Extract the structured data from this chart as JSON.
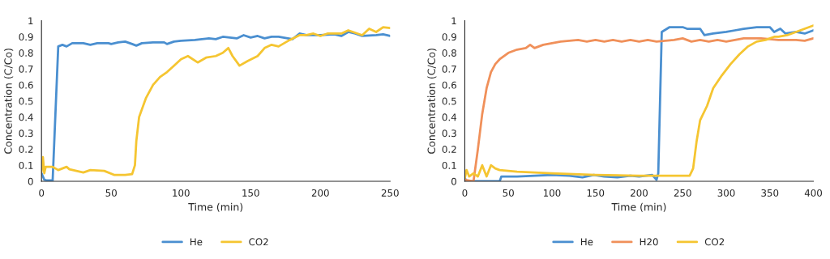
{
  "chart_data": [
    {
      "type": "line",
      "xlabel": "Time (min)",
      "ylabel": "Concentration (C/Co)",
      "xlim": [
        0,
        250
      ],
      "xticks": [
        0,
        50,
        100,
        150,
        200,
        250
      ],
      "ylim": [
        0,
        1
      ],
      "yticks": [
        0,
        0.1,
        0.2,
        0.3,
        0.4,
        0.5,
        0.6,
        0.7,
        0.8,
        0.9,
        1
      ],
      "grid": false,
      "legend": "bottom",
      "line_style": "solid",
      "marker": "none",
      "series": [
        {
          "name": "He",
          "color": "#4a8fd0",
          "x": [
            0,
            2,
            4,
            8,
            12,
            15,
            18,
            22,
            30,
            35,
            40,
            48,
            50,
            55,
            60,
            65,
            68,
            72,
            80,
            88,
            90,
            95,
            100,
            110,
            115,
            120,
            125,
            130,
            140,
            145,
            150,
            155,
            160,
            165,
            170,
            180,
            185,
            190,
            200,
            210,
            215,
            220,
            225,
            230,
            240,
            245,
            250
          ],
          "values": [
            0.05,
            0.01,
            0.005,
            0.005,
            0.84,
            0.85,
            0.84,
            0.86,
            0.86,
            0.85,
            0.86,
            0.86,
            0.855,
            0.865,
            0.87,
            0.855,
            0.845,
            0.86,
            0.865,
            0.865,
            0.855,
            0.87,
            0.875,
            0.88,
            0.885,
            0.89,
            0.885,
            0.9,
            0.89,
            0.91,
            0.895,
            0.905,
            0.89,
            0.9,
            0.9,
            0.885,
            0.92,
            0.91,
            0.91,
            0.915,
            0.905,
            0.93,
            0.92,
            0.905,
            0.91,
            0.915,
            0.905
          ]
        },
        {
          "name": "CO2",
          "color": "#f5c531",
          "x": [
            0,
            1,
            2,
            3,
            8,
            12,
            18,
            20,
            30,
            35,
            45,
            52,
            60,
            65,
            67,
            68,
            70,
            75,
            80,
            85,
            90,
            95,
            100,
            105,
            112,
            118,
            125,
            130,
            134,
            137,
            142,
            148,
            155,
            160,
            165,
            170,
            178,
            185,
            190,
            195,
            200,
            205,
            215,
            220,
            230,
            235,
            240,
            245,
            250
          ],
          "values": [
            0.06,
            0.15,
            0.05,
            0.09,
            0.09,
            0.07,
            0.09,
            0.075,
            0.055,
            0.07,
            0.065,
            0.04,
            0.04,
            0.045,
            0.1,
            0.25,
            0.4,
            0.52,
            0.6,
            0.65,
            0.68,
            0.72,
            0.76,
            0.78,
            0.74,
            0.77,
            0.78,
            0.8,
            0.83,
            0.78,
            0.72,
            0.75,
            0.78,
            0.83,
            0.85,
            0.84,
            0.88,
            0.91,
            0.91,
            0.92,
            0.905,
            0.92,
            0.92,
            0.94,
            0.91,
            0.95,
            0.93,
            0.96,
            0.955
          ]
        }
      ]
    },
    {
      "type": "line",
      "xlabel": "Time (min)",
      "ylabel": "Concentration (C/Co)",
      "xlim": [
        0,
        400
      ],
      "xticks": [
        0,
        50,
        100,
        150,
        200,
        250,
        300,
        350,
        400
      ],
      "ylim": [
        0,
        1
      ],
      "yticks": [
        0,
        0.1,
        0.2,
        0.3,
        0.4,
        0.5,
        0.6,
        0.7,
        0.8,
        0.9,
        1
      ],
      "grid": false,
      "legend": "bottom",
      "line_style": "solid",
      "marker": "none",
      "series": [
        {
          "name": "He",
          "color": "#4a8fd0",
          "x": [
            0,
            2,
            40,
            42,
            60,
            80,
            100,
            120,
            135,
            148,
            160,
            175,
            190,
            200,
            215,
            220,
            222,
            226,
            235,
            250,
            255,
            270,
            275,
            285,
            300,
            310,
            320,
            335,
            350,
            355,
            362,
            368,
            380,
            390,
            400
          ],
          "values": [
            0.02,
            0,
            0,
            0.03,
            0.03,
            0.035,
            0.04,
            0.035,
            0.025,
            0.04,
            0.03,
            0.025,
            0.035,
            0.03,
            0.04,
            0.01,
            0.05,
            0.93,
            0.96,
            0.96,
            0.95,
            0.95,
            0.91,
            0.92,
            0.93,
            0.94,
            0.95,
            0.96,
            0.96,
            0.93,
            0.95,
            0.92,
            0.93,
            0.92,
            0.94
          ]
        },
        {
          "name": "H20",
          "color": "#f0905a",
          "x": [
            0,
            10,
            15,
            20,
            25,
            30,
            35,
            40,
            50,
            60,
            70,
            75,
            80,
            90,
            100,
            110,
            130,
            140,
            150,
            160,
            170,
            180,
            190,
            200,
            210,
            220,
            240,
            250,
            260,
            270,
            280,
            290,
            300,
            320,
            340,
            360,
            380,
            390,
            400
          ],
          "values": [
            0.01,
            0,
            0.2,
            0.42,
            0.58,
            0.68,
            0.73,
            0.76,
            0.8,
            0.82,
            0.83,
            0.85,
            0.83,
            0.85,
            0.86,
            0.87,
            0.88,
            0.87,
            0.88,
            0.87,
            0.88,
            0.87,
            0.88,
            0.87,
            0.88,
            0.87,
            0.88,
            0.89,
            0.87,
            0.88,
            0.87,
            0.88,
            0.87,
            0.89,
            0.89,
            0.88,
            0.88,
            0.875,
            0.89
          ]
        },
        {
          "name": "CO2",
          "color": "#f5c531",
          "x": [
            0,
            2,
            5,
            10,
            15,
            20,
            25,
            30,
            35,
            40,
            60,
            100,
            150,
            200,
            258,
            262,
            266,
            270,
            278,
            285,
            295,
            305,
            315,
            325,
            335,
            345,
            355,
            360,
            370,
            380,
            390,
            400
          ],
          "values": [
            0.02,
            0.07,
            0.03,
            0.05,
            0.03,
            0.1,
            0.03,
            0.1,
            0.08,
            0.07,
            0.06,
            0.05,
            0.04,
            0.035,
            0.035,
            0.08,
            0.25,
            0.38,
            0.47,
            0.58,
            0.66,
            0.73,
            0.79,
            0.84,
            0.87,
            0.88,
            0.9,
            0.9,
            0.91,
            0.93,
            0.95,
            0.97
          ]
        }
      ]
    }
  ]
}
